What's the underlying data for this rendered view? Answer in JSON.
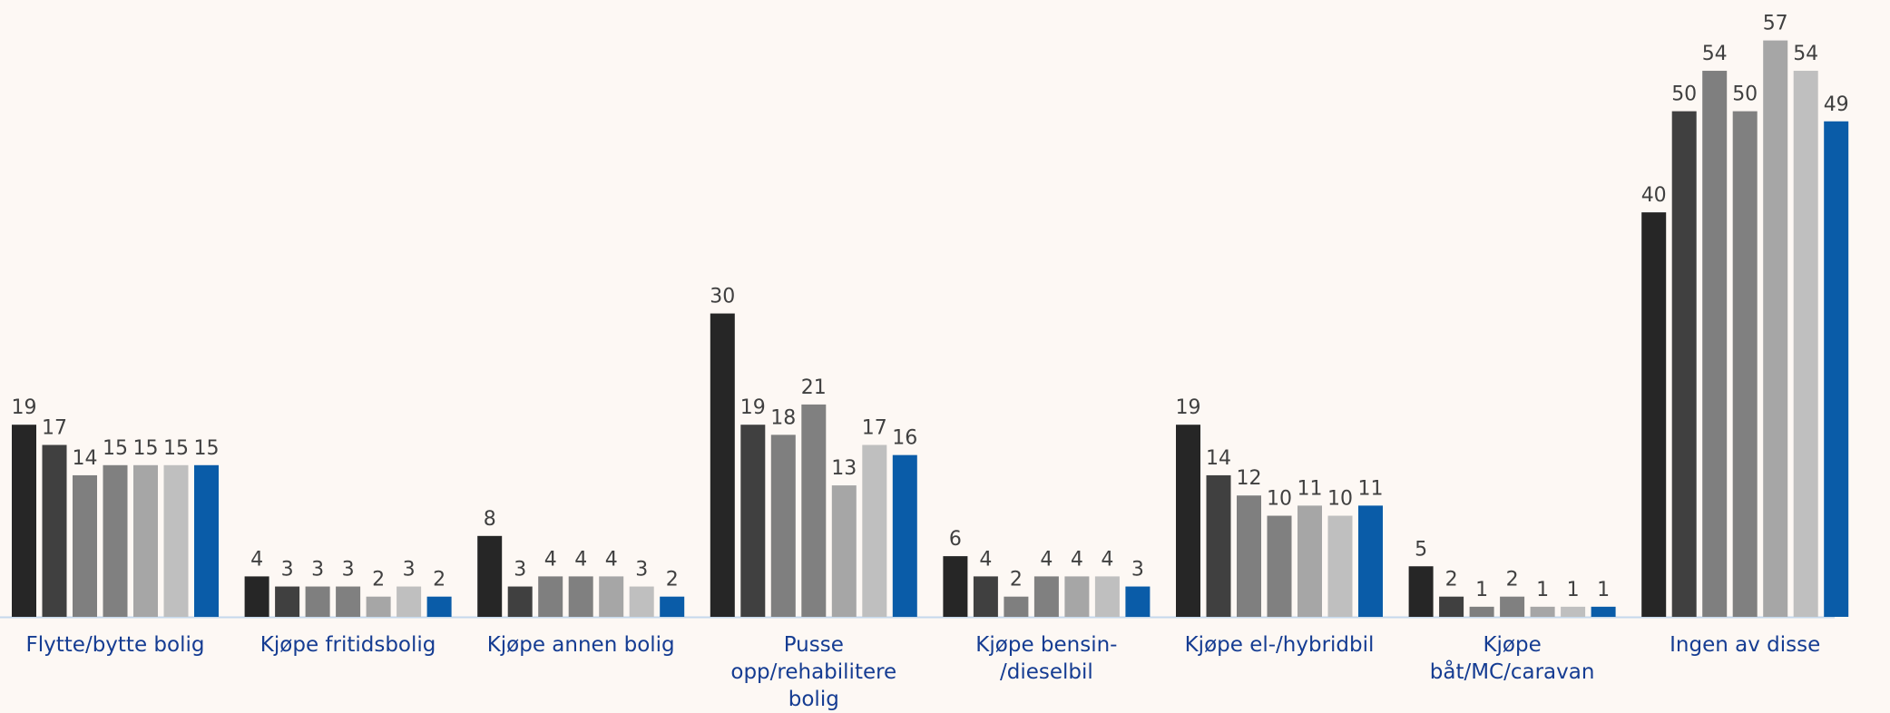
{
  "chart_data": {
    "type": "bar",
    "categories": [
      "Flytte/bytte bolig",
      "Kjøpe fritidsbolig",
      "Kjøpe annen bolig",
      "Pusse\nopp/rehabilitere\nbolig",
      "Kjøpe bensin-\n/dieselbil",
      "Kjøpe el-/hybridbil",
      "Kjøpe\nbåt/MC/caravan",
      "Ingen av disse"
    ],
    "series": [
      {
        "color": "#262626",
        "values": [
          19,
          4,
          8,
          30,
          6,
          19,
          5,
          40
        ]
      },
      {
        "color": "#404040",
        "values": [
          17,
          3,
          3,
          19,
          4,
          14,
          2,
          50
        ]
      },
      {
        "color": "#7f7f7f",
        "values": [
          14,
          3,
          4,
          18,
          2,
          12,
          1,
          54
        ]
      },
      {
        "color": "#808080",
        "values": [
          15,
          3,
          4,
          21,
          4,
          10,
          2,
          50
        ]
      },
      {
        "color": "#a6a6a6",
        "values": [
          15,
          2,
          4,
          13,
          4,
          11,
          1,
          57
        ]
      },
      {
        "color": "#bfbfbf",
        "values": [
          15,
          3,
          3,
          17,
          4,
          10,
          1,
          54
        ]
      },
      {
        "color": "#0a5ca8",
        "values": [
          15,
          2,
          2,
          16,
          3,
          11,
          1,
          49
        ]
      }
    ],
    "ylim": [
      0,
      61
    ]
  }
}
